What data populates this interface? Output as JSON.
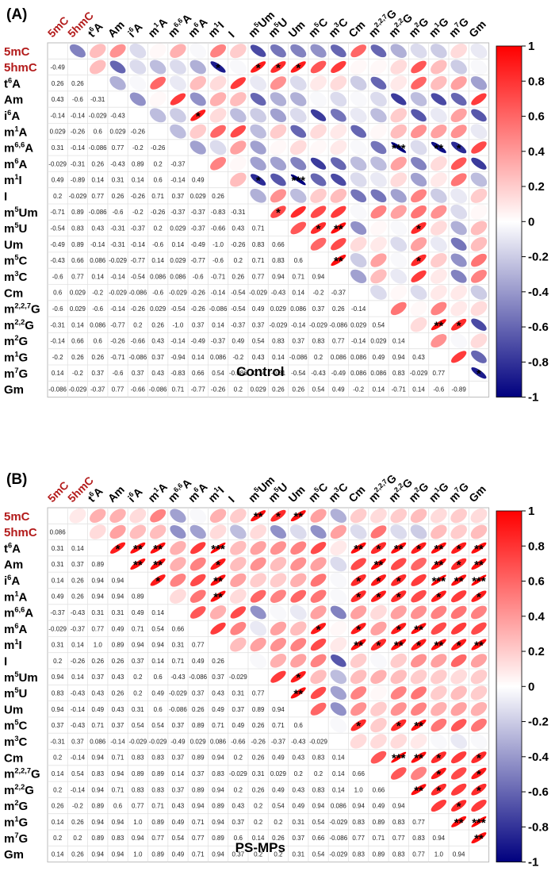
{
  "chart_data": [
    {
      "type": "heatmap",
      "panel": "(A)",
      "title": "Control",
      "variables": [
        "5mC",
        "5hmC",
        "t6A",
        "Am",
        "i6A",
        "m1A",
        "m6,6A",
        "m6A",
        "m1I",
        "I",
        "m5Um",
        "m5U",
        "Um",
        "m5C",
        "m3C",
        "Cm",
        "m2,2,7G",
        "m2,2G",
        "m2G",
        "m1G",
        "m7G",
        "Gm"
      ],
      "highlighted_variables": [
        "5mC",
        "5hmC"
      ],
      "lower_triangle": [
        [],
        [
          -0.49
        ],
        [
          0.26,
          0.26
        ],
        [
          0.43,
          -0.6,
          -0.31
        ],
        [
          -0.14,
          -0.14,
          -0.029,
          -0.43
        ],
        [
          0.029,
          -0.26,
          0.6,
          0.029,
          -0.26
        ],
        [
          0.31,
          -0.14,
          -0.086,
          0.77,
          -0.2,
          -0.26
        ],
        [
          -0.029,
          -0.31,
          0.26,
          -0.43,
          0.89,
          0.2,
          -0.37
        ],
        [
          0.49,
          -0.89,
          0.14,
          0.31,
          0.14,
          0.6,
          -0.14,
          0.49
        ],
        [
          0.2,
          -0.029,
          0.77,
          0.26,
          -0.26,
          0.71,
          0.37,
          0.029,
          0.26
        ],
        [
          -0.71,
          0.89,
          -0.086,
          -0.6,
          -0.2,
          -0.26,
          -0.37,
          -0.37,
          -0.83,
          -0.31
        ],
        [
          -0.54,
          0.83,
          0.43,
          -0.31,
          -0.37,
          0.2,
          0.029,
          -0.37,
          -0.66,
          0.43,
          0.71
        ],
        [
          -0.49,
          0.89,
          -0.14,
          -0.31,
          -0.14,
          -0.6,
          0.14,
          -0.49,
          -1.0,
          -0.26,
          0.83,
          0.66
        ],
        [
          -0.43,
          0.66,
          0.086,
          -0.029,
          -0.77,
          0.14,
          0.029,
          -0.77,
          -0.6,
          0.2,
          0.71,
          0.83,
          0.6
        ],
        [
          -0.6,
          0.77,
          0.14,
          -0.14,
          -0.54,
          0.086,
          0.086,
          -0.6,
          -0.71,
          0.26,
          0.77,
          0.94,
          0.71,
          0.94
        ],
        [
          0.6,
          0.029,
          -0.2,
          -0.029,
          -0.086,
          -0.6,
          -0.029,
          -0.26,
          -0.14,
          -0.54,
          -0.029,
          -0.43,
          0.14,
          -0.2,
          -0.37
        ],
        [
          -0.6,
          0.029,
          -0.6,
          -0.14,
          -0.26,
          0.029,
          -0.54,
          -0.26,
          -0.086,
          -0.54,
          0.49,
          0.029,
          0.086,
          0.37,
          0.26,
          -0.14
        ],
        [
          -0.31,
          0.14,
          0.086,
          -0.77,
          0.2,
          0.26,
          -1.0,
          0.37,
          0.14,
          -0.37,
          0.37,
          -0.029,
          -0.14,
          -0.029,
          -0.086,
          0.029,
          0.54
        ],
        [
          -0.14,
          0.66,
          0.6,
          -0.26,
          -0.66,
          0.43,
          -0.14,
          -0.49,
          -0.37,
          0.49,
          0.54,
          0.83,
          0.37,
          0.83,
          0.77,
          -0.14,
          0.029,
          0.14
        ],
        [
          -0.2,
          0.26,
          0.26,
          -0.71,
          -0.086,
          0.37,
          -0.94,
          0.14,
          0.086,
          -0.2,
          0.43,
          0.14,
          -0.086,
          0.2,
          0.086,
          0.086,
          0.49,
          0.94,
          0.43
        ],
        [
          0.14,
          -0.2,
          0.37,
          -0.6,
          0.37,
          0.43,
          -0.83,
          0.66,
          0.54,
          -0.086,
          -0.14,
          -0.31,
          -0.54,
          -0.43,
          -0.49,
          0.086,
          0.086,
          0.83,
          -0.029,
          0.77
        ],
        [
          -0.086,
          -0.029,
          -0.37,
          0.77,
          -0.66,
          -0.086,
          0.71,
          -0.77,
          -0.26,
          0.2,
          0.029,
          0.26,
          0.26,
          0.54,
          0.49,
          -0.2,
          0.14,
          -0.71,
          0.14,
          -0.6,
          -0.89
        ]
      ],
      "significance": [
        {
          "row": "5hmC",
          "col": "m1I",
          "mark": "*"
        },
        {
          "row": "5hmC",
          "col": "m5Um",
          "mark": "*"
        },
        {
          "row": "5hmC",
          "col": "m5U",
          "mark": "*"
        },
        {
          "row": "5hmC",
          "col": "Um",
          "mark": "*"
        },
        {
          "row": "i6A",
          "col": "m6A",
          "mark": "*"
        },
        {
          "row": "m6,6A",
          "col": "m2,2G",
          "mark": "***"
        },
        {
          "row": "m6,6A",
          "col": "m1G",
          "mark": "**"
        },
        {
          "row": "m6,6A",
          "col": "m7G",
          "mark": "*"
        },
        {
          "row": "m1I",
          "col": "m5Um",
          "mark": "*"
        },
        {
          "row": "m1I",
          "col": "Um",
          "mark": "***"
        },
        {
          "row": "m5Um",
          "col": "m5U",
          "mark": "*"
        },
        {
          "row": "m5U",
          "col": "m5C",
          "mark": "*"
        },
        {
          "row": "m5U",
          "col": "m3C",
          "mark": "**"
        },
        {
          "row": "m5U",
          "col": "m2G",
          "mark": "*"
        },
        {
          "row": "m5C",
          "col": "m3C",
          "mark": "**"
        },
        {
          "row": "m5C",
          "col": "m2G",
          "mark": "*"
        },
        {
          "row": "m2,2G",
          "col": "m1G",
          "mark": "**"
        },
        {
          "row": "m2,2G",
          "col": "m7G",
          "mark": "*"
        },
        {
          "row": "m7G",
          "col": "Gm",
          "mark": "*"
        }
      ],
      "colorbar": {
        "min": -1,
        "max": 1,
        "ticks": [
          "1",
          "0.8",
          "0.6",
          "0.4",
          "0.2",
          "0",
          "-0.2",
          "-0.4",
          "-0.6",
          "-0.8",
          "-1"
        ],
        "low_color": "#00007f",
        "mid_color": "#ffffff",
        "high_color": "#ff0000"
      }
    },
    {
      "type": "heatmap",
      "panel": "(B)",
      "title": "PS-MPs",
      "variables": [
        "5mC",
        "5hmC",
        "t6A",
        "Am",
        "i6A",
        "m1A",
        "m6,6A",
        "m6A",
        "m1I",
        "I",
        "m5Um",
        "m5U",
        "Um",
        "m5C",
        "m3C",
        "Cm",
        "m2,2,7G",
        "m2,2G",
        "m2G",
        "m1G",
        "m7G",
        "Gm"
      ],
      "highlighted_variables": [
        "5mC",
        "5hmC"
      ],
      "lower_triangle": [
        [],
        [
          0.086
        ],
        [
          0.31,
          0.14
        ],
        [
          0.31,
          0.37,
          0.89
        ],
        [
          0.14,
          0.26,
          0.94,
          0.94
        ],
        [
          0.49,
          0.26,
          0.94,
          0.94,
          0.89
        ],
        [
          -0.37,
          -0.43,
          0.31,
          0.31,
          0.49,
          0.14
        ],
        [
          -0.029,
          -0.37,
          0.77,
          0.49,
          0.71,
          0.54,
          0.66
        ],
        [
          0.31,
          0.14,
          1.0,
          0.89,
          0.94,
          0.94,
          0.31,
          0.77
        ],
        [
          0.2,
          -0.26,
          0.26,
          0.26,
          0.37,
          0.14,
          0.71,
          0.49,
          0.26
        ],
        [
          0.94,
          0.14,
          0.37,
          0.43,
          0.2,
          0.6,
          -0.43,
          -0.086,
          0.37,
          -0.029
        ],
        [
          0.83,
          -0.43,
          0.43,
          0.26,
          0.2,
          0.49,
          -0.029,
          0.37,
          0.43,
          0.31,
          0.77
        ],
        [
          0.94,
          -0.14,
          0.49,
          0.43,
          0.31,
          0.6,
          -0.086,
          0.26,
          0.49,
          0.37,
          0.89,
          0.94
        ],
        [
          0.37,
          -0.43,
          0.71,
          0.37,
          0.54,
          0.54,
          0.37,
          0.89,
          0.71,
          0.49,
          0.26,
          0.71,
          0.6
        ],
        [
          -0.31,
          0.37,
          0.086,
          -0.14,
          -0.029,
          -0.029,
          -0.49,
          0.029,
          0.086,
          -0.66,
          -0.26,
          -0.37,
          -0.43,
          -0.029
        ],
        [
          0.2,
          -0.14,
          0.94,
          0.71,
          0.83,
          0.83,
          0.37,
          0.89,
          0.94,
          0.2,
          0.26,
          0.49,
          0.43,
          0.83,
          0.14
        ],
        [
          0.14,
          0.54,
          0.83,
          0.94,
          0.89,
          0.89,
          0.14,
          0.37,
          0.83,
          -0.029,
          0.31,
          0.029,
          0.2,
          0.2,
          0.14,
          0.66
        ],
        [
          0.2,
          -0.14,
          0.94,
          0.71,
          0.83,
          0.83,
          0.37,
          0.89,
          0.94,
          0.2,
          0.26,
          0.49,
          0.43,
          0.83,
          0.14,
          1.0,
          0.66
        ],
        [
          0.26,
          -0.2,
          0.89,
          0.6,
          0.77,
          0.71,
          0.43,
          0.94,
          0.89,
          0.43,
          0.2,
          0.54,
          0.49,
          0.94,
          0.086,
          0.94,
          0.49,
          0.94
        ],
        [
          0.14,
          0.26,
          0.94,
          0.94,
          1.0,
          0.89,
          0.49,
          0.71,
          0.94,
          0.37,
          0.2,
          0.2,
          0.31,
          0.54,
          -0.029,
          0.83,
          0.89,
          0.83,
          0.77
        ],
        [
          0.2,
          0.2,
          0.89,
          0.83,
          0.94,
          0.77,
          0.54,
          0.77,
          0.89,
          0.6,
          0.14,
          0.26,
          0.37,
          0.66,
          -0.086,
          0.77,
          0.71,
          0.77,
          0.83,
          0.94
        ],
        [
          0.14,
          0.26,
          0.94,
          0.94,
          1.0,
          0.89,
          0.49,
          0.71,
          0.94,
          0.37,
          0.2,
          0.2,
          0.31,
          0.54,
          -0.029,
          0.83,
          0.89,
          0.83,
          0.77,
          1.0,
          0.94
        ]
      ],
      "significance": [
        {
          "row": "5mC",
          "col": "m5Um",
          "mark": "**"
        },
        {
          "row": "5mC",
          "col": "m5U",
          "mark": "*"
        },
        {
          "row": "5mC",
          "col": "Um",
          "mark": "**"
        },
        {
          "row": "t6A",
          "col": "Am",
          "mark": "*"
        },
        {
          "row": "t6A",
          "col": "i6A",
          "mark": "**"
        },
        {
          "row": "t6A",
          "col": "m1A",
          "mark": "**"
        },
        {
          "row": "t6A",
          "col": "m1I",
          "mark": "***"
        },
        {
          "row": "t6A",
          "col": "Cm",
          "mark": "**"
        },
        {
          "row": "t6A",
          "col": "m2,2,7G",
          "mark": "*"
        },
        {
          "row": "t6A",
          "col": "m2,2G",
          "mark": "**"
        },
        {
          "row": "t6A",
          "col": "m2G",
          "mark": "*"
        },
        {
          "row": "t6A",
          "col": "m1G",
          "mark": "**"
        },
        {
          "row": "t6A",
          "col": "m7G",
          "mark": "*"
        },
        {
          "row": "t6A",
          "col": "Gm",
          "mark": "**"
        },
        {
          "row": "Am",
          "col": "i6A",
          "mark": "**"
        },
        {
          "row": "Am",
          "col": "m1A",
          "mark": "**"
        },
        {
          "row": "Am",
          "col": "m1I",
          "mark": "*"
        },
        {
          "row": "Am",
          "col": "m2,2,7G",
          "mark": "**"
        },
        {
          "row": "Am",
          "col": "m1G",
          "mark": "**"
        },
        {
          "row": "Am",
          "col": "m7G",
          "mark": "*"
        },
        {
          "row": "Am",
          "col": "Gm",
          "mark": "**"
        },
        {
          "row": "i6A",
          "col": "m1A",
          "mark": "*"
        },
        {
          "row": "i6A",
          "col": "m1I",
          "mark": "**"
        },
        {
          "row": "i6A",
          "col": "Cm",
          "mark": "*"
        },
        {
          "row": "i6A",
          "col": "m2,2,7G",
          "mark": "*"
        },
        {
          "row": "i6A",
          "col": "m2,2G",
          "mark": "*"
        },
        {
          "row": "i6A",
          "col": "m1G",
          "mark": "***"
        },
        {
          "row": "i6A",
          "col": "m7G",
          "mark": "**"
        },
        {
          "row": "i6A",
          "col": "Gm",
          "mark": "***"
        },
        {
          "row": "m1A",
          "col": "m1I",
          "mark": "**"
        },
        {
          "row": "m1A",
          "col": "Cm",
          "mark": "*"
        },
        {
          "row": "m1A",
          "col": "m2,2,7G",
          "mark": "*"
        },
        {
          "row": "m1A",
          "col": "m2,2G",
          "mark": "*"
        },
        {
          "row": "m1A",
          "col": "m1G",
          "mark": "*"
        },
        {
          "row": "m1A",
          "col": "Gm",
          "mark": "*"
        },
        {
          "row": "m6A",
          "col": "m5C",
          "mark": "*"
        },
        {
          "row": "m6A",
          "col": "Cm",
          "mark": "*"
        },
        {
          "row": "m6A",
          "col": "m2,2G",
          "mark": "*"
        },
        {
          "row": "m6A",
          "col": "m2G",
          "mark": "**"
        },
        {
          "row": "m1I",
          "col": "Cm",
          "mark": "**"
        },
        {
          "row": "m1I",
          "col": "m2,2,7G",
          "mark": "*"
        },
        {
          "row": "m1I",
          "col": "m2,2G",
          "mark": "**"
        },
        {
          "row": "m1I",
          "col": "m2G",
          "mark": "*"
        },
        {
          "row": "m1I",
          "col": "m1G",
          "mark": "**"
        },
        {
          "row": "m1I",
          "col": "m7G",
          "mark": "*"
        },
        {
          "row": "m1I",
          "col": "Gm",
          "mark": "**"
        },
        {
          "row": "m5Um",
          "col": "Um",
          "mark": "*"
        },
        {
          "row": "m5U",
          "col": "Um",
          "mark": "**"
        },
        {
          "row": "m5C",
          "col": "Cm",
          "mark": "*"
        },
        {
          "row": "m5C",
          "col": "m2,2G",
          "mark": "*"
        },
        {
          "row": "m5C",
          "col": "m2G",
          "mark": "**"
        },
        {
          "row": "Cm",
          "col": "m2,2G",
          "mark": "***"
        },
        {
          "row": "Cm",
          "col": "m2G",
          "mark": "**"
        },
        {
          "row": "Cm",
          "col": "m1G",
          "mark": "*"
        },
        {
          "row": "Cm",
          "col": "Gm",
          "mark": "*"
        },
        {
          "row": "m2,2,7G",
          "col": "m1G",
          "mark": "*"
        },
        {
          "row": "m2,2,7G",
          "col": "Gm",
          "mark": "*"
        },
        {
          "row": "m2,2G",
          "col": "m2G",
          "mark": "**"
        },
        {
          "row": "m2,2G",
          "col": "m1G",
          "mark": "*"
        },
        {
          "row": "m2,2G",
          "col": "Gm",
          "mark": "*"
        },
        {
          "row": "m2G",
          "col": "m7G",
          "mark": "*"
        },
        {
          "row": "m1G",
          "col": "m7G",
          "mark": "**"
        },
        {
          "row": "m1G",
          "col": "Gm",
          "mark": "***"
        },
        {
          "row": "m7G",
          "col": "Gm",
          "mark": "**"
        }
      ],
      "colorbar": {
        "min": -1,
        "max": 1,
        "ticks": [
          "1",
          "0.8",
          "0.6",
          "0.4",
          "0.2",
          "0",
          "-0.2",
          "-0.4",
          "-0.6",
          "-0.8",
          "-1"
        ],
        "low_color": "#00007f",
        "mid_color": "#ffffff",
        "high_color": "#ff0000"
      }
    }
  ]
}
